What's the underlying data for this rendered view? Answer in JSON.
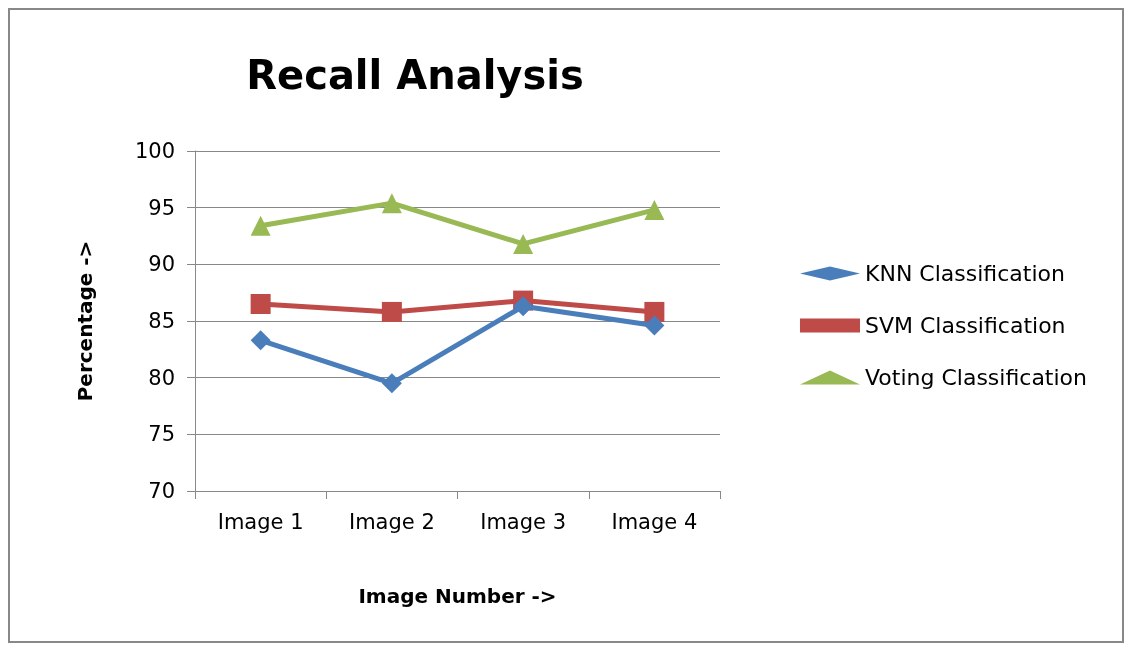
{
  "chart_data": {
    "type": "line",
    "title": "Recall Analysis",
    "xlabel": "Image Number ->",
    "ylabel": "Percentage ->",
    "categories": [
      "Image 1",
      "Image 2",
      "Image 3",
      "Image 4"
    ],
    "series": [
      {
        "name": "KNN Classification",
        "color": "#4a7ebb",
        "marker": "diamond",
        "values": [
          83.3,
          79.5,
          86.3,
          84.6
        ]
      },
      {
        "name": "SVM Classification",
        "color": "#be4b48",
        "marker": "square",
        "values": [
          86.5,
          85.8,
          86.8,
          85.8
        ]
      },
      {
        "name": "Voting Classification",
        "color": "#98b954",
        "marker": "triangle",
        "values": [
          93.4,
          95.4,
          91.8,
          94.8
        ]
      }
    ],
    "ylim": [
      70,
      100
    ],
    "yticks": [
      70,
      75,
      80,
      85,
      90,
      95,
      100
    ],
    "grid": "y",
    "legend": "right"
  }
}
